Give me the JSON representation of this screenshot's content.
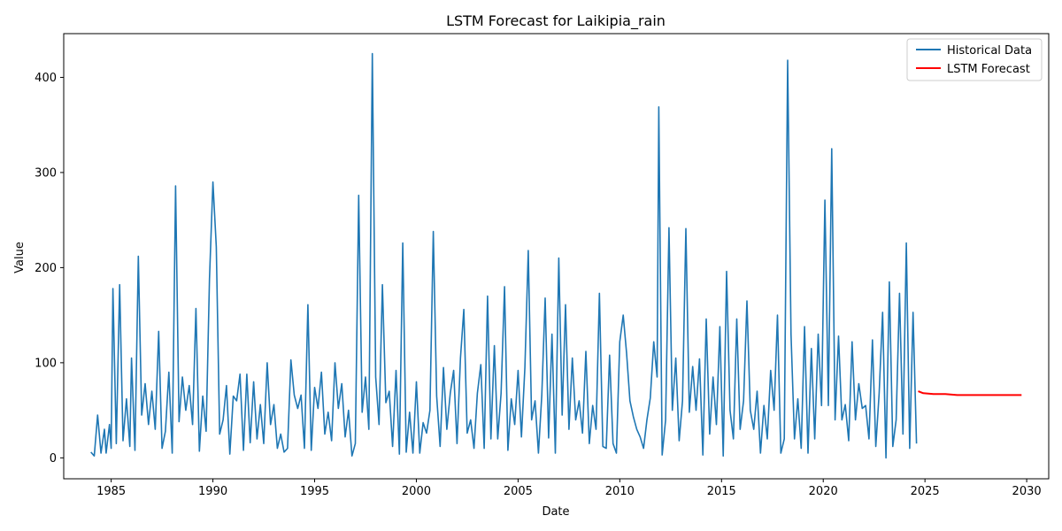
{
  "chart_data": {
    "type": "line",
    "title": "LSTM Forecast for Laikipia_rain",
    "xlabel": "Date",
    "ylabel": "Value",
    "xlim": [
      "1982-09-01",
      "2031-02-01"
    ],
    "ylim": [
      -22,
      446
    ],
    "x_ticks": [
      "1985",
      "1990",
      "1995",
      "2000",
      "2005",
      "2010",
      "2015",
      "2020",
      "2025",
      "2030"
    ],
    "y_ticks": [
      "0",
      "100",
      "200",
      "300",
      "400"
    ],
    "legend_position": "top-right",
    "grid": false,
    "colors": {
      "historical": "#1f77b4",
      "forecast": "#ff0000"
    },
    "series": [
      {
        "name": "Historical Data",
        "color": "#1f77b4",
        "points": [
          [
            "1984-01",
            6
          ],
          [
            "1984-03",
            2
          ],
          [
            "1984-05",
            45
          ],
          [
            "1984-07",
            5
          ],
          [
            "1984-09",
            30
          ],
          [
            "1984-10",
            5
          ],
          [
            "1984-12",
            35
          ],
          [
            "1985-01",
            10
          ],
          [
            "1985-02",
            178
          ],
          [
            "1985-04",
            15
          ],
          [
            "1985-06",
            182
          ],
          [
            "1985-08",
            18
          ],
          [
            "1985-10",
            62
          ],
          [
            "1985-12",
            12
          ],
          [
            "1986-01",
            105
          ],
          [
            "1986-03",
            8
          ],
          [
            "1986-05",
            212
          ],
          [
            "1986-07",
            45
          ],
          [
            "1986-09",
            78
          ],
          [
            "1986-11",
            35
          ],
          [
            "1987-01",
            70
          ],
          [
            "1987-03",
            30
          ],
          [
            "1987-05",
            133
          ],
          [
            "1987-07",
            10
          ],
          [
            "1987-09",
            28
          ],
          [
            "1987-11",
            90
          ],
          [
            "1988-01",
            5
          ],
          [
            "1988-03",
            286
          ],
          [
            "1988-05",
            38
          ],
          [
            "1988-07",
            85
          ],
          [
            "1988-09",
            50
          ],
          [
            "1988-11",
            76
          ],
          [
            "1989-01",
            35
          ],
          [
            "1989-03",
            157
          ],
          [
            "1989-05",
            7
          ],
          [
            "1989-07",
            65
          ],
          [
            "1989-09",
            28
          ],
          [
            "1989-11",
            188
          ],
          [
            "1990-01",
            290
          ],
          [
            "1990-03",
            222
          ],
          [
            "1990-05",
            25
          ],
          [
            "1990-07",
            40
          ],
          [
            "1990-09",
            76
          ],
          [
            "1990-11",
            4
          ],
          [
            "1991-01",
            65
          ],
          [
            "1991-03",
            60
          ],
          [
            "1991-05",
            88
          ],
          [
            "1991-07",
            8
          ],
          [
            "1991-09",
            88
          ],
          [
            "1991-11",
            16
          ],
          [
            "1992-01",
            80
          ],
          [
            "1992-03",
            20
          ],
          [
            "1992-05",
            56
          ],
          [
            "1992-07",
            15
          ],
          [
            "1992-09",
            100
          ],
          [
            "1992-11",
            35
          ],
          [
            "1993-01",
            56
          ],
          [
            "1993-03",
            10
          ],
          [
            "1993-05",
            25
          ],
          [
            "1993-07",
            6
          ],
          [
            "1993-09",
            10
          ],
          [
            "1993-11",
            103
          ],
          [
            "1994-01",
            66
          ],
          [
            "1994-03",
            52
          ],
          [
            "1994-05",
            66
          ],
          [
            "1994-07",
            10
          ],
          [
            "1994-09",
            161
          ],
          [
            "1994-11",
            8
          ],
          [
            "1995-01",
            74
          ],
          [
            "1995-03",
            52
          ],
          [
            "1995-05",
            90
          ],
          [
            "1995-07",
            25
          ],
          [
            "1995-09",
            48
          ],
          [
            "1995-11",
            18
          ],
          [
            "1996-01",
            100
          ],
          [
            "1996-03",
            52
          ],
          [
            "1996-05",
            78
          ],
          [
            "1996-07",
            22
          ],
          [
            "1996-09",
            50
          ],
          [
            "1996-11",
            2
          ],
          [
            "1997-01",
            15
          ],
          [
            "1997-03",
            276
          ],
          [
            "1997-05",
            48
          ],
          [
            "1997-07",
            85
          ],
          [
            "1997-09",
            30
          ],
          [
            "1997-11",
            425
          ],
          [
            "1998-01",
            85
          ],
          [
            "1998-03",
            35
          ],
          [
            "1998-05",
            182
          ],
          [
            "1998-07",
            58
          ],
          [
            "1998-09",
            70
          ],
          [
            "1998-11",
            12
          ],
          [
            "1999-01",
            92
          ],
          [
            "1999-03",
            4
          ],
          [
            "1999-05",
            226
          ],
          [
            "1999-07",
            6
          ],
          [
            "1999-09",
            48
          ],
          [
            "1999-11",
            5
          ],
          [
            "2000-01",
            80
          ],
          [
            "2000-03",
            5
          ],
          [
            "2000-05",
            37
          ],
          [
            "2000-07",
            26
          ],
          [
            "2000-09",
            50
          ],
          [
            "2000-11",
            238
          ],
          [
            "2001-01",
            65
          ],
          [
            "2001-03",
            12
          ],
          [
            "2001-05",
            95
          ],
          [
            "2001-07",
            30
          ],
          [
            "2001-09",
            68
          ],
          [
            "2001-11",
            92
          ],
          [
            "2002-01",
            15
          ],
          [
            "2002-03",
            105
          ],
          [
            "2002-05",
            156
          ],
          [
            "2002-07",
            26
          ],
          [
            "2002-09",
            40
          ],
          [
            "2002-11",
            10
          ],
          [
            "2003-01",
            68
          ],
          [
            "2003-03",
            98
          ],
          [
            "2003-05",
            10
          ],
          [
            "2003-07",
            170
          ],
          [
            "2003-09",
            20
          ],
          [
            "2003-11",
            118
          ],
          [
            "2004-01",
            20
          ],
          [
            "2004-03",
            68
          ],
          [
            "2004-05",
            180
          ],
          [
            "2004-07",
            8
          ],
          [
            "2004-09",
            62
          ],
          [
            "2004-11",
            35
          ],
          [
            "2005-01",
            92
          ],
          [
            "2005-03",
            22
          ],
          [
            "2005-05",
            95
          ],
          [
            "2005-07",
            218
          ],
          [
            "2005-09",
            40
          ],
          [
            "2005-11",
            60
          ],
          [
            "2006-01",
            5
          ],
          [
            "2006-03",
            66
          ],
          [
            "2006-05",
            168
          ],
          [
            "2006-07",
            21
          ],
          [
            "2006-09",
            130
          ],
          [
            "2006-11",
            5
          ],
          [
            "2007-01",
            210
          ],
          [
            "2007-03",
            45
          ],
          [
            "2007-05",
            161
          ],
          [
            "2007-07",
            30
          ],
          [
            "2007-09",
            105
          ],
          [
            "2007-11",
            40
          ],
          [
            "2008-01",
            60
          ],
          [
            "2008-03",
            26
          ],
          [
            "2008-05",
            112
          ],
          [
            "2008-07",
            15
          ],
          [
            "2008-09",
            55
          ],
          [
            "2008-11",
            30
          ],
          [
            "2009-01",
            173
          ],
          [
            "2009-03",
            12
          ],
          [
            "2009-05",
            10
          ],
          [
            "2009-07",
            108
          ],
          [
            "2009-09",
            15
          ],
          [
            "2009-11",
            5
          ],
          [
            "2010-01",
            122
          ],
          [
            "2010-03",
            150
          ],
          [
            "2010-05",
            110
          ],
          [
            "2010-07",
            60
          ],
          [
            "2010-09",
            43
          ],
          [
            "2010-11",
            30
          ],
          [
            "2011-01",
            22
          ],
          [
            "2011-03",
            10
          ],
          [
            "2011-05",
            40
          ],
          [
            "2011-07",
            63
          ],
          [
            "2011-09",
            122
          ],
          [
            "2011-11",
            85
          ],
          [
            "2011-12",
            369
          ],
          [
            "2012-02",
            3
          ],
          [
            "2012-04",
            40
          ],
          [
            "2012-06",
            242
          ],
          [
            "2012-08",
            50
          ],
          [
            "2012-10",
            105
          ],
          [
            "2012-12",
            18
          ],
          [
            "2013-02",
            60
          ],
          [
            "2013-04",
            241
          ],
          [
            "2013-06",
            48
          ],
          [
            "2013-08",
            96
          ],
          [
            "2013-10",
            50
          ],
          [
            "2013-12",
            104
          ],
          [
            "2014-02",
            3
          ],
          [
            "2014-04",
            146
          ],
          [
            "2014-06",
            25
          ],
          [
            "2014-08",
            85
          ],
          [
            "2014-10",
            35
          ],
          [
            "2014-12",
            138
          ],
          [
            "2015-02",
            2
          ],
          [
            "2015-04",
            196
          ],
          [
            "2015-06",
            50
          ],
          [
            "2015-08",
            20
          ],
          [
            "2015-10",
            146
          ],
          [
            "2015-12",
            30
          ],
          [
            "2016-02",
            60
          ],
          [
            "2016-04",
            165
          ],
          [
            "2016-06",
            50
          ],
          [
            "2016-08",
            30
          ],
          [
            "2016-10",
            70
          ],
          [
            "2016-12",
            5
          ],
          [
            "2017-02",
            55
          ],
          [
            "2017-04",
            20
          ],
          [
            "2017-06",
            92
          ],
          [
            "2017-08",
            50
          ],
          [
            "2017-10",
            150
          ],
          [
            "2017-12",
            5
          ],
          [
            "2018-02",
            20
          ],
          [
            "2018-04",
            418
          ],
          [
            "2018-06",
            130
          ],
          [
            "2018-08",
            20
          ],
          [
            "2018-10",
            62
          ],
          [
            "2018-12",
            10
          ],
          [
            "2019-02",
            138
          ],
          [
            "2019-04",
            5
          ],
          [
            "2019-06",
            115
          ],
          [
            "2019-08",
            20
          ],
          [
            "2019-10",
            130
          ],
          [
            "2019-12",
            55
          ],
          [
            "2020-02",
            271
          ],
          [
            "2020-04",
            55
          ],
          [
            "2020-06",
            325
          ],
          [
            "2020-08",
            40
          ],
          [
            "2020-10",
            128
          ],
          [
            "2020-12",
            40
          ],
          [
            "2021-02",
            56
          ],
          [
            "2021-04",
            18
          ],
          [
            "2021-06",
            122
          ],
          [
            "2021-08",
            40
          ],
          [
            "2021-10",
            78
          ],
          [
            "2021-12",
            52
          ],
          [
            "2022-02",
            55
          ],
          [
            "2022-04",
            20
          ],
          [
            "2022-06",
            124
          ],
          [
            "2022-08",
            12
          ],
          [
            "2022-10",
            68
          ],
          [
            "2022-12",
            153
          ],
          [
            "2023-02",
            0
          ],
          [
            "2023-04",
            185
          ],
          [
            "2023-06",
            12
          ],
          [
            "2023-08",
            40
          ],
          [
            "2023-10",
            173
          ],
          [
            "2023-12",
            25
          ],
          [
            "2024-02",
            226
          ],
          [
            "2024-04",
            10
          ],
          [
            "2024-06",
            153
          ],
          [
            "2024-08",
            15
          ]
        ]
      },
      {
        "name": "LSTM Forecast",
        "color": "#ff0000",
        "points": [
          [
            "2024-09",
            70
          ],
          [
            "2024-12",
            68
          ],
          [
            "2025-06",
            67
          ],
          [
            "2026-01",
            67
          ],
          [
            "2026-08",
            66
          ],
          [
            "2027-06",
            66
          ],
          [
            "2028-06",
            66
          ],
          [
            "2029-10",
            66
          ]
        ]
      }
    ]
  }
}
